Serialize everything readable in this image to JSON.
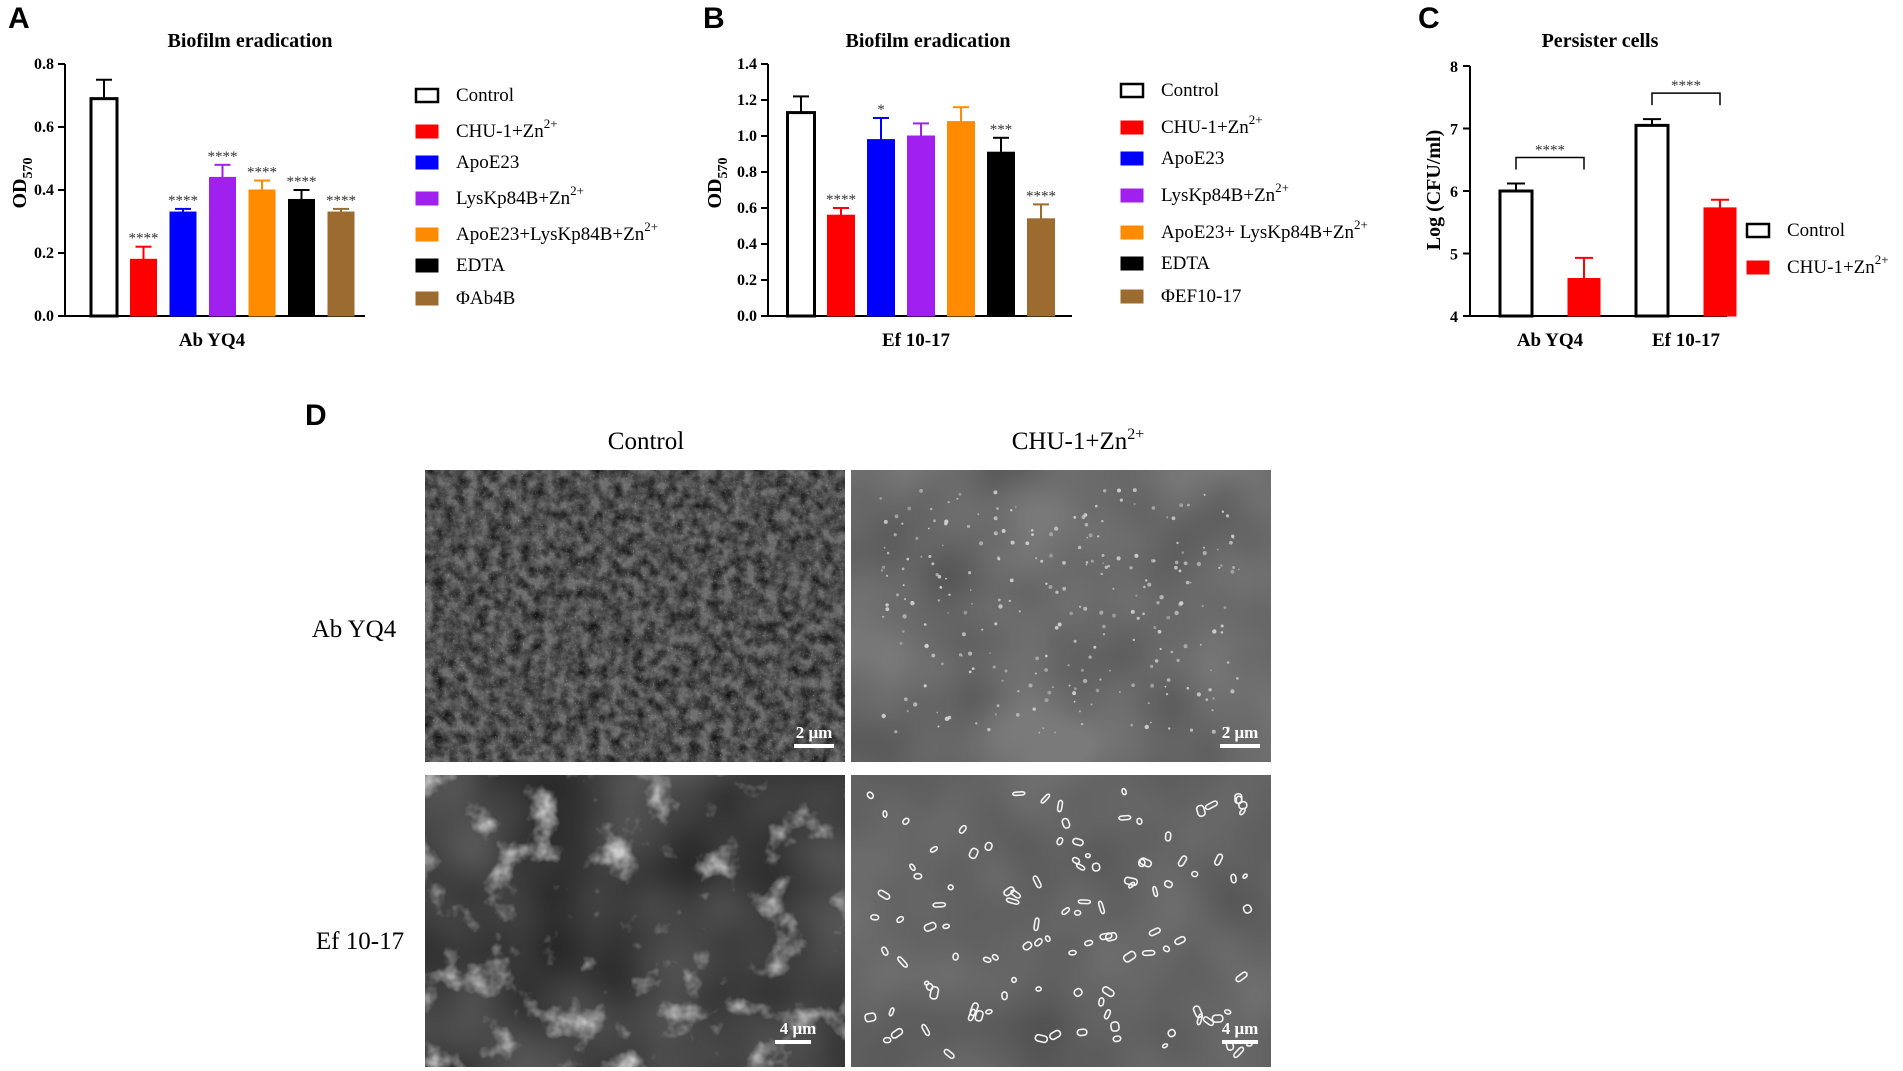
{
  "chart_data": [
    {
      "panel": "A",
      "type": "bar",
      "title": "Biofilm eradication",
      "ylabel_main": "OD",
      "ylabel_sub": "570",
      "xlabel": "Ab YQ4",
      "ylim": [
        0,
        0.8
      ],
      "yticks": [
        "0.0",
        "0.2",
        "0.4",
        "0.6",
        "0.8"
      ],
      "ytick_values": [
        0,
        0.2,
        0.4,
        0.6,
        0.8
      ],
      "legend_position": "right",
      "series": [
        {
          "name": "Control",
          "sup": "",
          "value": 0.69,
          "err": 0.06,
          "sig": "",
          "color": "#ffffff",
          "hollow": true
        },
        {
          "name": "CHU-1+Zn",
          "sup": "2+",
          "value": 0.18,
          "err": 0.04,
          "sig": "****",
          "color": "#ff0000",
          "hollow": false
        },
        {
          "name": "ApoE23",
          "sup": "",
          "value": 0.33,
          "err": 0.01,
          "sig": "****",
          "color": "#0000ff",
          "hollow": false
        },
        {
          "name": "LysKp84B+Zn",
          "sup": "2+",
          "value": 0.44,
          "err": 0.04,
          "sig": "****",
          "color": "#a020f0",
          "hollow": false
        },
        {
          "name": "ApoE23+LysKp84B+Zn",
          "sup": "2+",
          "value": 0.4,
          "err": 0.03,
          "sig": "****",
          "color": "#ff8c00",
          "hollow": false
        },
        {
          "name": "EDTA",
          "sup": "",
          "value": 0.37,
          "err": 0.03,
          "sig": "****",
          "color": "#000000",
          "hollow": false
        },
        {
          "name": "ΦAb4B",
          "sup": "",
          "value": 0.33,
          "err": 0.01,
          "sig": "****",
          "color": "#9c6b30",
          "hollow": false
        }
      ]
    },
    {
      "panel": "B",
      "type": "bar",
      "title": "Biofilm eradication",
      "ylabel_main": "OD",
      "ylabel_sub": "570",
      "xlabel": "Ef 10-17",
      "ylim": [
        0,
        1.4
      ],
      "yticks": [
        "0.0",
        "0.2",
        "0.4",
        "0.6",
        "0.8",
        "1.0",
        "1.2",
        "1.4"
      ],
      "ytick_values": [
        0,
        0.2,
        0.4,
        0.6,
        0.8,
        1.0,
        1.2,
        1.4
      ],
      "legend_position": "right",
      "series": [
        {
          "name": "Control",
          "sup": "",
          "value": 1.13,
          "err": 0.09,
          "sig": "",
          "color": "#ffffff",
          "hollow": true
        },
        {
          "name": "CHU-1+Zn",
          "sup": "2+",
          "value": 0.56,
          "err": 0.04,
          "sig": "****",
          "color": "#ff0000",
          "hollow": false
        },
        {
          "name": "ApoE23",
          "sup": "",
          "value": 0.98,
          "err": 0.12,
          "sig": "*",
          "color": "#0000ff",
          "hollow": false
        },
        {
          "name": "LysKp84B+Zn",
          "sup": "2+",
          "value": 1.0,
          "err": 0.07,
          "sig": "",
          "color": "#a020f0",
          "hollow": false
        },
        {
          "name": "ApoE23+ LysKp84B+Zn",
          "sup": "2+",
          "value": 1.08,
          "err": 0.08,
          "sig": "",
          "color": "#ff8c00",
          "hollow": false
        },
        {
          "name": "EDTA",
          "sup": "",
          "value": 0.91,
          "err": 0.08,
          "sig": "***",
          "color": "#000000",
          "hollow": false
        },
        {
          "name": "ΦEF10-17",
          "sup": "",
          "value": 0.54,
          "err": 0.08,
          "sig": "****",
          "color": "#9c6b30",
          "hollow": false
        }
      ]
    },
    {
      "panel": "C",
      "type": "bar",
      "title": "Persister cells",
      "ylabel": "Log (CFU/ml)",
      "categories": [
        "Ab YQ4",
        "Ef 10-17"
      ],
      "ylim": [
        4,
        8
      ],
      "yticks": [
        "4",
        "5",
        "6",
        "7",
        "8"
      ],
      "ytick_values": [
        4,
        5,
        6,
        7,
        8
      ],
      "legend_position": "right",
      "series": [
        {
          "name": "Control",
          "sup": "",
          "values": [
            6.0,
            7.05
          ],
          "err": [
            0.12,
            0.1
          ],
          "color": "#ffffff",
          "hollow": true
        },
        {
          "name": "CHU-1+Zn",
          "sup": "2+",
          "values": [
            4.6,
            5.73
          ],
          "err": [
            0.33,
            0.13
          ],
          "color": "#ff0000",
          "hollow": false
        }
      ],
      "comparisons": [
        "****",
        "****"
      ]
    }
  ],
  "panel_d": {
    "letter": "D",
    "columns": [
      "Control",
      "CHU-1+Zn"
    ],
    "column_sup": [
      "",
      "2+"
    ],
    "rows": [
      "Ab YQ4",
      "Ef 10-17"
    ],
    "scale_bars": [
      [
        "2 μm",
        "2 μm"
      ],
      [
        "4 μm",
        "4 μm"
      ]
    ]
  }
}
